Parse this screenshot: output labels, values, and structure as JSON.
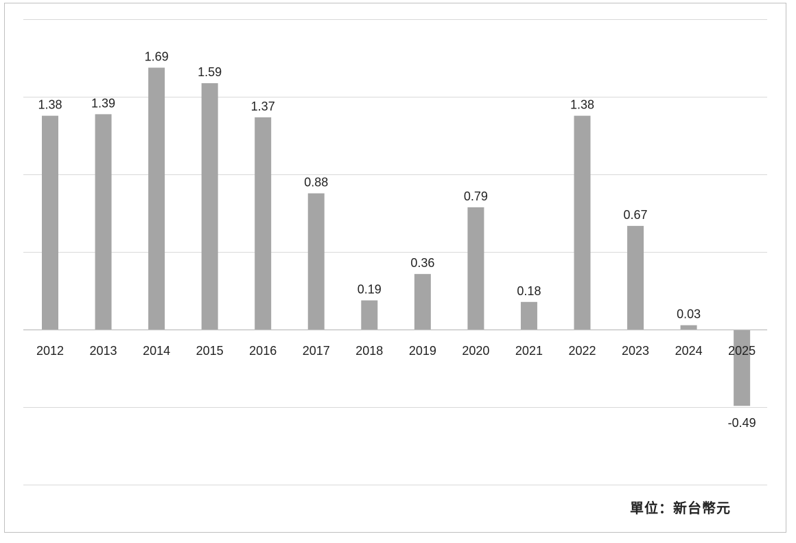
{
  "chart_data": {
    "type": "bar",
    "categories": [
      "2012",
      "2013",
      "2014",
      "2015",
      "2016",
      "2017",
      "2018",
      "2019",
      "2020",
      "2021",
      "2022",
      "2023",
      "2024",
      "2025"
    ],
    "values": [
      1.38,
      1.39,
      1.69,
      1.59,
      1.37,
      0.88,
      0.19,
      0.36,
      0.79,
      0.18,
      1.38,
      0.67,
      0.03,
      -0.49
    ],
    "data_labels": [
      "1.38",
      "1.39",
      "1.69",
      "1.59",
      "1.37",
      "0.88",
      "0.19",
      "0.36",
      "0.79",
      "0.18",
      "1.38",
      "0.67",
      "0.03",
      "-0.49"
    ],
    "ylim": [
      -1.0,
      2.0
    ],
    "gridlines": [
      -1.0,
      -0.5,
      0.0,
      0.5,
      1.0,
      1.5,
      2.0
    ],
    "grid": true,
    "bar_color": "#a5a5a5",
    "grid_color": "#d9d9d9",
    "axis_color": "#bfbfbf"
  },
  "unit_note": "單位：新台幣元"
}
